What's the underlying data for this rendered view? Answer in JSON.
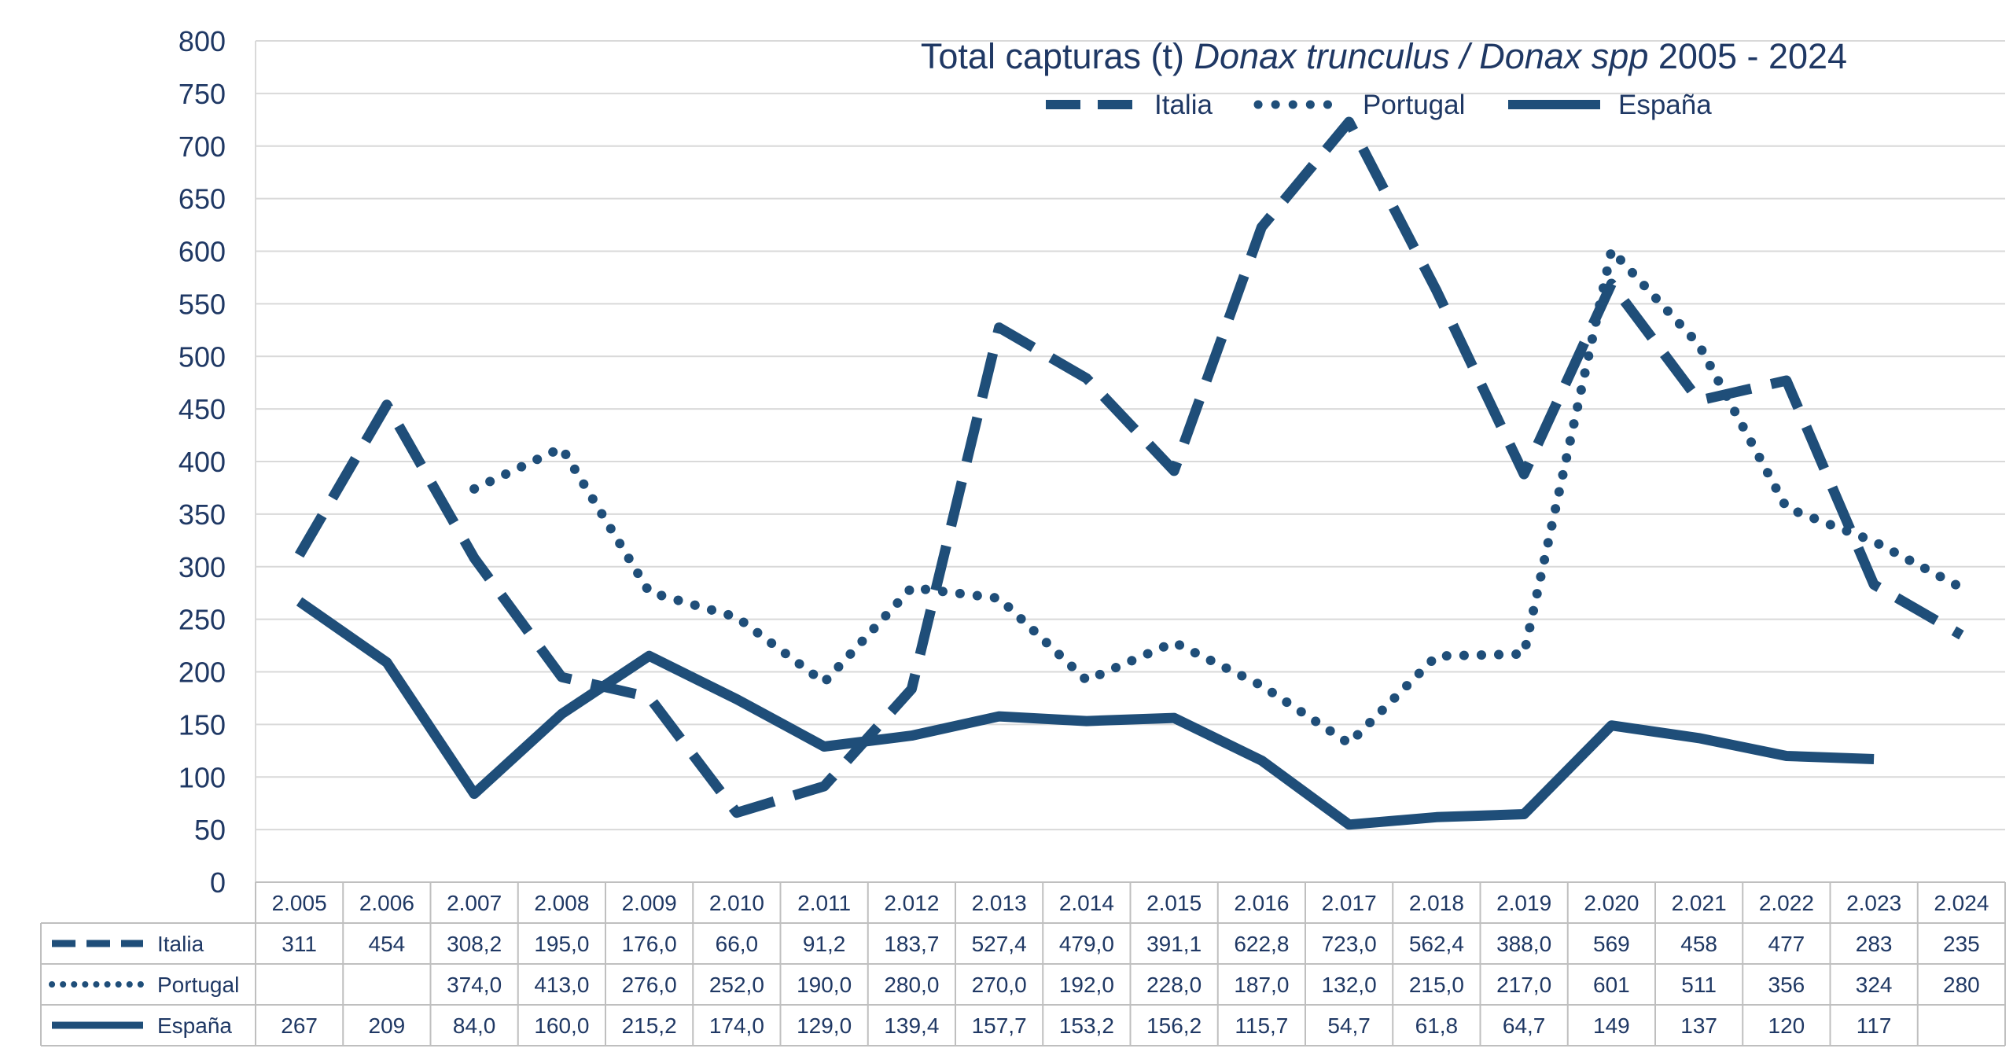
{
  "colors": {
    "series": "#1f4e79",
    "grid": "#d9d9d9",
    "axis_text": "#1f3864",
    "table_border": "#bfbfbf"
  },
  "chart_data": {
    "type": "line",
    "title_parts": [
      {
        "text": "Total capturas (t) ",
        "italic": false
      },
      {
        "text": "Donax trunculus / Donax spp",
        "italic": true
      },
      {
        "text": "  2005 - 2024",
        "italic": false
      }
    ],
    "ylim": [
      0,
      800
    ],
    "yticks": [
      "0",
      "50",
      "100",
      "150",
      "200",
      "250",
      "300",
      "350",
      "400",
      "450",
      "500",
      "550",
      "600",
      "650",
      "700",
      "750",
      "800"
    ],
    "categories": [
      "2.005",
      "2.006",
      "2.007",
      "2.008",
      "2.009",
      "2.010",
      "2.011",
      "2.012",
      "2.013",
      "2.014",
      "2.015",
      "2.016",
      "2.017",
      "2.018",
      "2.019",
      "2.020",
      "2.021",
      "2.022",
      "2.023",
      "2.024"
    ],
    "grid": true,
    "legend_position": "top-right",
    "series": [
      {
        "name": "Italia",
        "style": "dashed",
        "values": [
          311,
          454,
          308.2,
          195.0,
          176.0,
          66.0,
          91.2,
          183.7,
          527.4,
          479.0,
          391.1,
          622.8,
          723.0,
          562.4,
          388.0,
          569,
          458,
          477,
          283,
          235
        ],
        "labels": [
          "311",
          "454",
          "308,2",
          "195,0",
          "176,0",
          "66,0",
          "91,2",
          "183,7",
          "527,4",
          "479,0",
          "391,1",
          "622,8",
          "723,0",
          "562,4",
          "388,0",
          "569",
          "458",
          "477",
          "283",
          "235"
        ]
      },
      {
        "name": "Portugal",
        "style": "dotted",
        "values": [
          null,
          null,
          374.0,
          413.0,
          276.0,
          252.0,
          190.0,
          280.0,
          270.0,
          192.0,
          228.0,
          187.0,
          132.0,
          215.0,
          217.0,
          601,
          511,
          356,
          324,
          280
        ],
        "labels": [
          "",
          "",
          "374,0",
          "413,0",
          "276,0",
          "252,0",
          "190,0",
          "280,0",
          "270,0",
          "192,0",
          "228,0",
          "187,0",
          "132,0",
          "215,0",
          "217,0",
          "601",
          "511",
          "356",
          "324",
          "280"
        ]
      },
      {
        "name": "España",
        "style": "solid",
        "values": [
          267,
          209,
          84.0,
          160.0,
          215.2,
          174.0,
          129.0,
          139.4,
          157.7,
          153.2,
          156.2,
          115.7,
          54.7,
          61.8,
          64.7,
          149,
          137,
          120,
          117,
          null
        ],
        "labels": [
          "267",
          "209",
          "84,0",
          "160,0",
          "215,2",
          "174,0",
          "129,0",
          "139,4",
          "157,7",
          "153,2",
          "156,2",
          "115,7",
          "54,7",
          "61,8",
          "64,7",
          "149",
          "137",
          "120",
          "117",
          ""
        ]
      }
    ]
  }
}
